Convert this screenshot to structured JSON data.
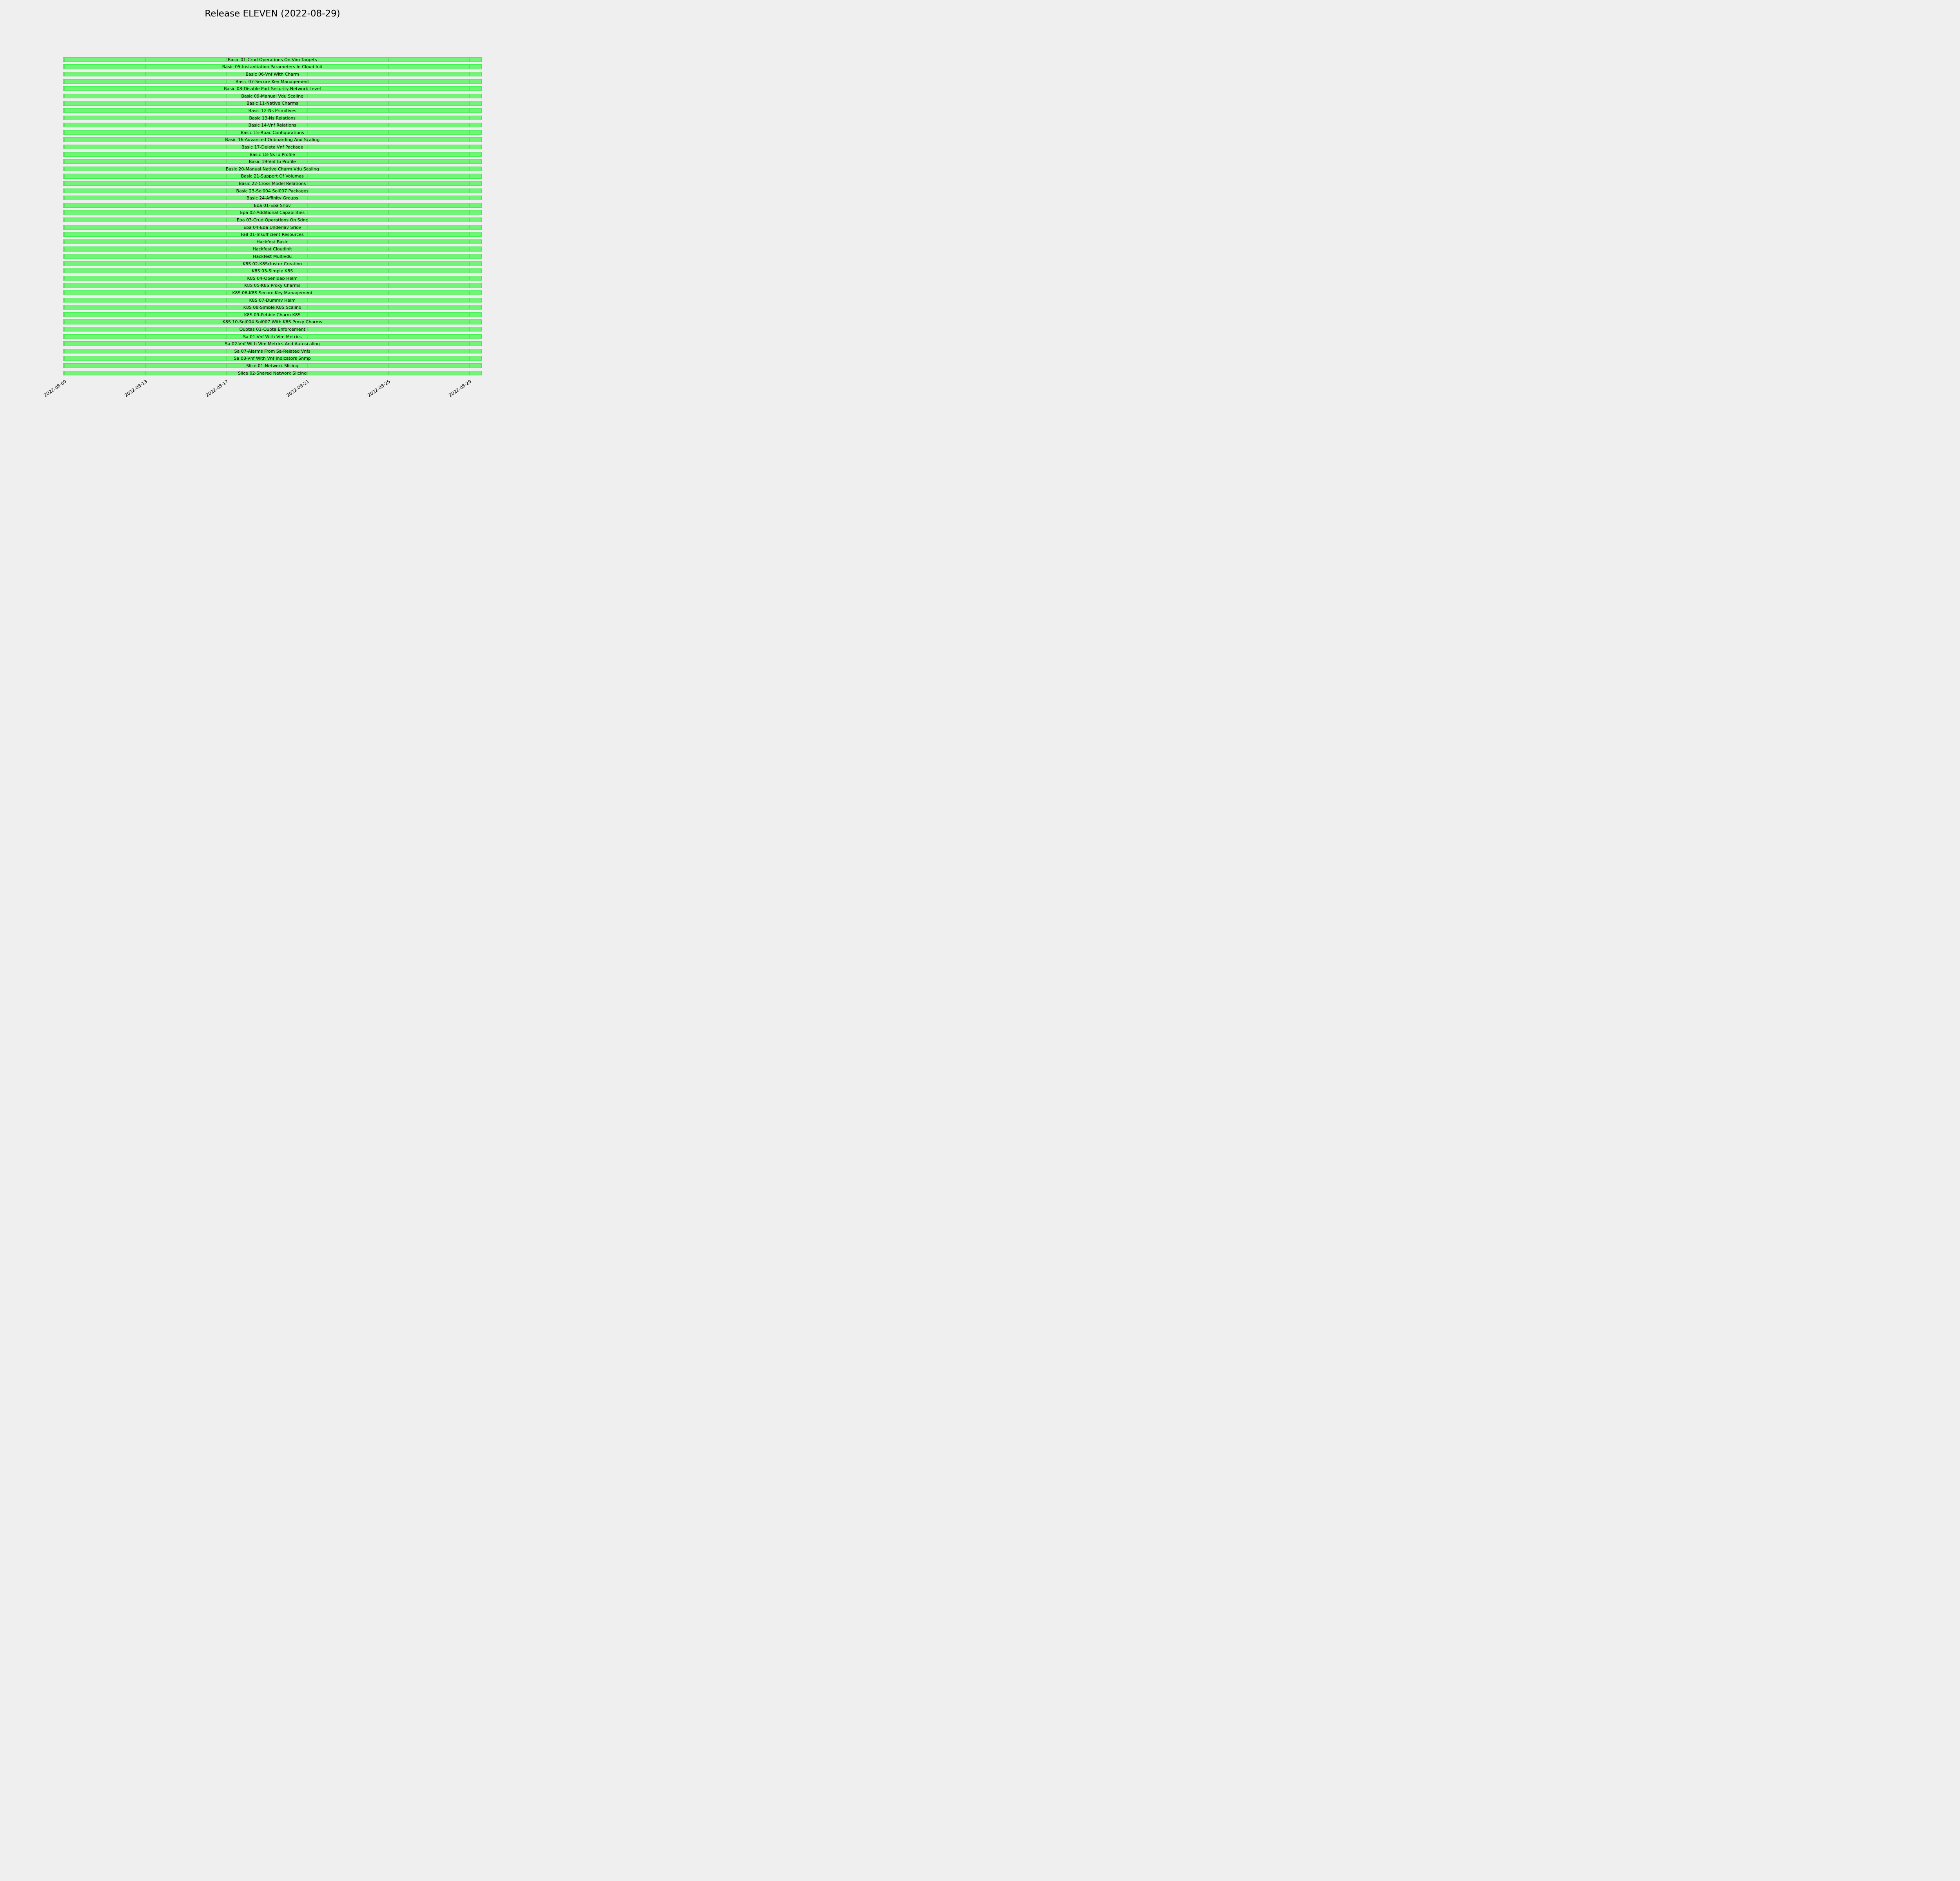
{
  "title": "Release ELEVEN (2022-08-29)",
  "chart_data": {
    "type": "bar",
    "variant": "gantt-horizontal",
    "title": "Release ELEVEN (2022-08-29)",
    "xlabel": "",
    "ylabel": "",
    "legend": "none",
    "grid": "vertical gridlines at date ticks, visible through the translucent bars",
    "x_ticks": [
      "2022-08-09",
      "2022-08-13",
      "2022-08-17",
      "2022-08-21",
      "2022-08-25",
      "2022-08-29"
    ],
    "x_range": [
      "2022-08-09",
      "2022-08-29"
    ],
    "bars": {
      "start": "2022-08-09",
      "end": "2022-08-29",
      "note": "all 44 bars are identical and span the full x-axis range (slightly overshooting the last tick)"
    },
    "categories": [
      "Basic 01-Crud Operations On Vim Targets",
      "Basic 05-Instantiation Parameters In Cloud Init",
      "Basic 06-Vnf With Charm",
      "Basic 07-Secure Key Management",
      "Basic 08-Disable Port Security Network Level",
      "Basic 09-Manual Vdu Scaling",
      "Basic 11-Native Charms",
      "Basic 12-Ns Primitives",
      "Basic 13-Ns Relations",
      "Basic 14-Vnf Relations",
      "Basic 15-Rbac Configurations",
      "Basic 16-Advanced Onboarding And Scaling",
      "Basic 17-Delete Vnf Package",
      "Basic 18-Ns Ip Profile",
      "Basic 19-Vnf Ip Profile",
      "Basic 20-Manual Native Charm Vdu Scaling",
      "Basic 21-Support Of Volumes",
      "Basic 22-Cross Model Relations",
      "Basic 23-Sol004 Sol007 Packages",
      "Basic 24-Affinity Groups",
      "Epa 01-Epa Sriov",
      "Epa 02-Additional Capabilities",
      "Epa 03-Crud Operations On Sdnc",
      "Epa 04-Epa Underlay Sriov",
      "Fail 01-Insufficient Resources",
      "Hackfest Basic",
      "Hackfest Cloudinit",
      "Hackfest Multivdu",
      "K8S 02-K8Scluster Creation",
      "K8S 03-Simple K8S",
      "K8S 04-Openldap Helm",
      "K8S 05-K8S Proxy Charms",
      "K8S 06-K8S Secure Key Management",
      "K8S 07-Dummy Helm",
      "K8S 08-Simple K8S Scaling",
      "K8S 09-Pebble Charm K8S",
      "K8S 10-Sol004 Sol007 With K8S Proxy Charms",
      "Quotas 01-Quota Enforcement",
      "Sa 01-Vnf With Vim Metrics",
      "Sa 02-Vnf With Vim Metrics And Autoscaling",
      "Sa 07-Alarms From Sa-Related Vnfs",
      "Sa 08-Vnf With Vnf Indicators Snmp",
      "Slice 01-Network Slicing",
      "Slice 02-Shared Network Slicing"
    ],
    "colors": {
      "background": "#efefef",
      "bar_fill": "#73f377",
      "bar_edge": "#3bf44b",
      "gridline_on_bar": "#67e36b",
      "text": "#000000"
    }
  }
}
